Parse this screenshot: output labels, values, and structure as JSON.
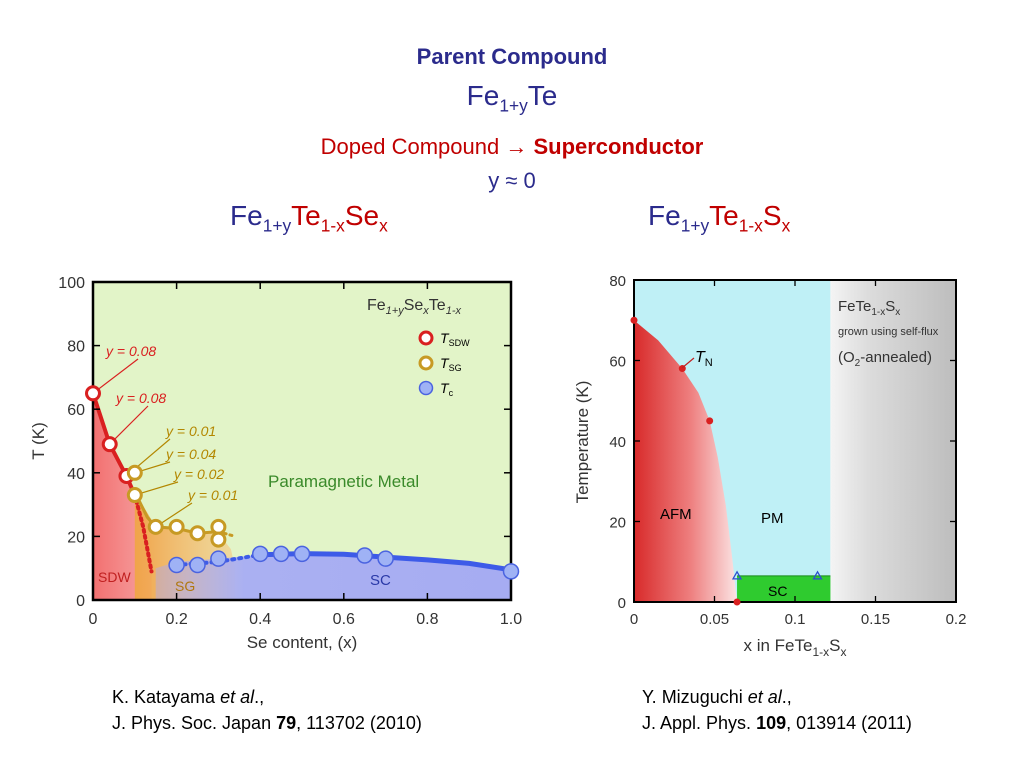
{
  "header": {
    "title": "Parent Compound",
    "parent_formula": {
      "base1": "Fe",
      "sub1": "1+y",
      "base2": "Te"
    },
    "doped_text": "Doped Compound",
    "arrow": "→",
    "superconductor": "Superconductor",
    "y_condition": "y ≈ 0"
  },
  "formulas": {
    "left": {
      "p1": "Fe",
      "s1": "1+y",
      "p2": "Te",
      "s2": "1-x",
      "p3": "Se",
      "s3": "x"
    },
    "right": {
      "p1": "Fe",
      "s1": "1+y",
      "p2": "Te",
      "s2": "1-x",
      "p3": "S",
      "s3": "x"
    }
  },
  "colors": {
    "navy": "#2b2b8c",
    "dark_red": "#c00000",
    "sdw_red": "#d93030",
    "sg_orange": "#c79a24",
    "tc_blue": "#4a63e0",
    "paramagnetic_green": "#e2f4c8",
    "pm_cyan": "#bff0f6",
    "sc_green": "#2fcb2f",
    "gray_region": "#bdbdbd"
  },
  "references": {
    "left": {
      "authors": "K. Katayama ",
      "etal": "et al",
      "comma": ".,",
      "journal": "J. Phys. Soc. Japan ",
      "volume": "79",
      "pages": ", 113702 (2010)"
    },
    "right": {
      "authors": "Y. Mizuguchi ",
      "etal": "et al",
      "comma": ".,",
      "journal": "J. Appl. Phys. ",
      "volume": "109",
      "pages": ", 013914 (2011)"
    }
  },
  "chart_data": [
    {
      "type": "scatter",
      "xlabel": "Se content, (x)",
      "ylabel": "T (K)",
      "xlim": [
        0,
        1.0
      ],
      "ylim": [
        0,
        100
      ],
      "x_ticks": [
        "0",
        "0.2",
        "0.4",
        "0.6",
        "0.8",
        "1.0"
      ],
      "y_ticks": [
        "0",
        "20",
        "40",
        "60",
        "80",
        "100"
      ],
      "legend": {
        "title": {
          "base1": "Fe",
          "sub1": "1+y",
          "base2": "Se",
          "sub2": "x",
          "base3": "Te",
          "sub3": "1-x"
        },
        "placement": "top-right",
        "entries": [
          {
            "symbol": "T",
            "sub": "SDW",
            "color": "#d93030"
          },
          {
            "symbol": "T",
            "sub": "SG",
            "color": "#c79a24"
          },
          {
            "symbol": "T",
            "sub": "c",
            "color": "#4a63e0"
          }
        ]
      },
      "region_labels": {
        "paramagnetic": "Paramagnetic Metal",
        "sdw": "SDW",
        "sg": "SG",
        "sc": "SC"
      },
      "y_annotations": [
        "y = 0.08",
        "y = 0.08",
        "y = 0.01",
        "y = 0.04",
        "y = 0.02",
        "y = 0.01"
      ],
      "series": [
        {
          "name": "T_SDW",
          "x": [
            0,
            0.04,
            0.08
          ],
          "y": [
            65,
            49,
            39
          ]
        },
        {
          "name": "T_SG",
          "x": [
            0.1,
            0.1,
            0.15,
            0.2,
            0.25,
            0.3,
            0.3
          ],
          "y": [
            40,
            33,
            23,
            23,
            21,
            23,
            19
          ]
        },
        {
          "name": "T_c",
          "x": [
            0.2,
            0.25,
            0.3,
            0.4,
            0.45,
            0.5,
            0.65,
            0.7,
            1.0
          ],
          "y": [
            11,
            11,
            13,
            14.5,
            14.5,
            14.5,
            14,
            13,
            9
          ]
        }
      ]
    },
    {
      "type": "scatter",
      "xlabel": {
        "base1": "x in FeTe",
        "sub1": "1-x",
        "base2": "S",
        "sub2": "x"
      },
      "ylabel": "Temperature (K)",
      "xlim": [
        0,
        0.2
      ],
      "ylim": [
        0,
        80
      ],
      "x_ticks": [
        "0",
        "0.05",
        "0.1",
        "0.15",
        "0.2"
      ],
      "y_ticks": [
        "0",
        "20",
        "40",
        "60",
        "80"
      ],
      "annotation": {
        "compound_base1": "FeTe",
        "compound_sub1": "1-x",
        "compound_base2": "S",
        "compound_sub2": "x",
        "grown": "grown using self-flux",
        "annealed_base1": "(O",
        "annealed_sub1": "2",
        "annealed_base2": "-annealed)"
      },
      "region_labels": {
        "afm": "AFM",
        "pm": "PM",
        "sc": "SC",
        "tn_symbol": "T",
        "tn_sub": "N"
      },
      "sc_region": {
        "x_start": 0.064,
        "x_end": 0.122,
        "tc": 6.5
      },
      "gray_region_start": 0.122,
      "series": [
        {
          "name": "T_N",
          "x": [
            0,
            0.03,
            0.047,
            0.064
          ],
          "y": [
            70,
            58,
            45,
            0
          ]
        },
        {
          "name": "T_c",
          "x": [
            0.064,
            0.114
          ],
          "y": [
            6.5,
            6.5
          ]
        }
      ]
    }
  ]
}
